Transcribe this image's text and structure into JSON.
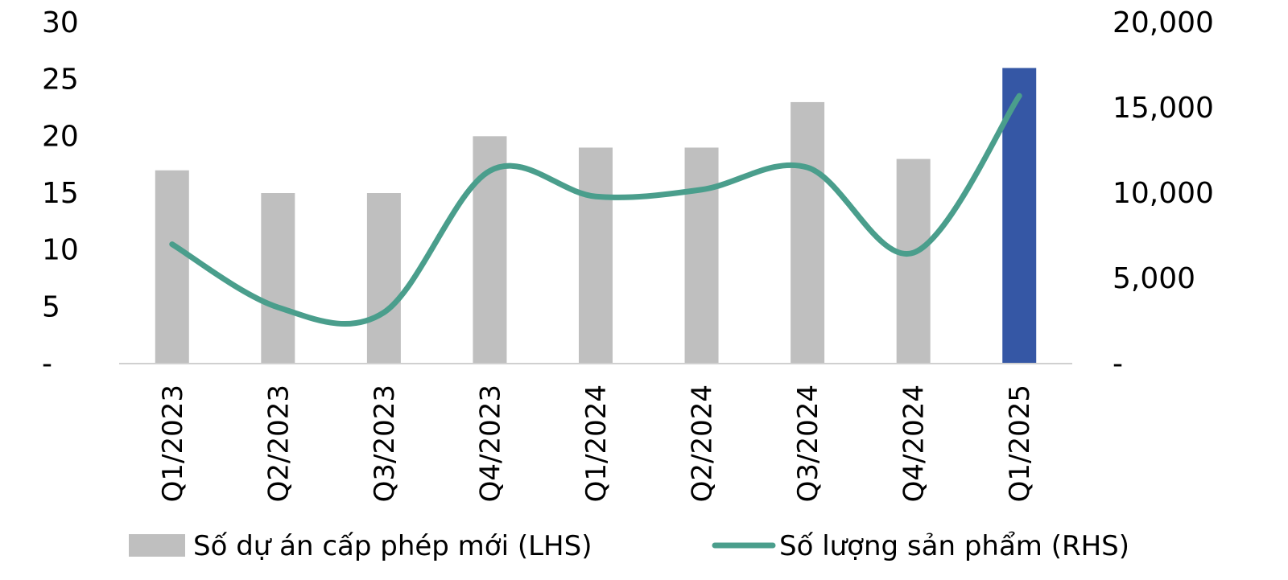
{
  "chart_data": {
    "type": "bar",
    "categories": [
      "Q1/2023",
      "Q2/2023",
      "Q3/2023",
      "Q4/2023",
      "Q1/2024",
      "Q2/2024",
      "Q3/2024",
      "Q4/2024",
      "Q1/2025"
    ],
    "series": [
      {
        "name": "Số dự án cấp phép mới (LHS)",
        "type": "bar",
        "axis": "left",
        "values": [
          17,
          15,
          15,
          20,
          19,
          19,
          23,
          18,
          26
        ],
        "color": "#BFBFBF",
        "highlight_color": "#3557A5",
        "highlight_index": 8
      },
      {
        "name": "Số lượng sản phẩm (RHS)",
        "type": "line",
        "axis": "right",
        "values": [
          7000,
          3300,
          3000,
          11300,
          9800,
          10200,
          11500,
          6500,
          15700
        ],
        "color": "#4A9E8C"
      }
    ],
    "y_left": {
      "min": 0,
      "max": 30,
      "ticks": [
        0,
        5,
        10,
        15,
        20,
        25,
        30
      ],
      "tick_labels": [
        "-",
        "5",
        "10",
        "15",
        "20",
        "25",
        "30"
      ]
    },
    "y_right": {
      "min": 0,
      "max": 20000,
      "ticks": [
        0,
        5000,
        10000,
        15000,
        20000
      ],
      "tick_labels": [
        "-",
        "5,000",
        "10,000",
        "15,000",
        "20,000"
      ]
    },
    "legend_position": "bottom",
    "grid": false
  }
}
